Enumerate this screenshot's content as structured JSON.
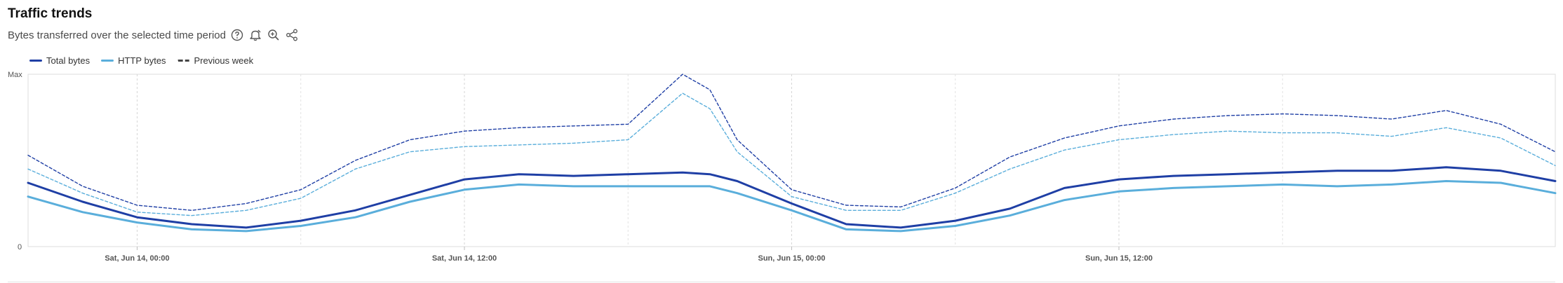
{
  "header": {
    "title": "Traffic trends",
    "subtitle": "Bytes transferred over the selected time period"
  },
  "icons": [
    "help-icon",
    "alert-icon",
    "zoom-icon",
    "share-icon"
  ],
  "legend": [
    {
      "label": "Total bytes",
      "color": "#1f3fa5",
      "style": "solid"
    },
    {
      "label": "HTTP bytes",
      "color": "#5aaedb",
      "style": "solid"
    },
    {
      "label": "Previous week",
      "color": "#444444",
      "style": "dashed"
    }
  ],
  "chart_data": {
    "type": "line",
    "ylim": [
      0,
      1
    ],
    "y_tick_labels": {
      "max": "Max",
      "min": "0"
    },
    "xlim": [
      "2025-06-13T20:00",
      "2025-06-16T04:00"
    ],
    "x_ticks": [
      {
        "label": "Sat, Jun 14, 00:00",
        "t": "2025-06-14T00:00"
      },
      {
        "label": "Sat, Jun 14, 12:00",
        "t": "2025-06-14T12:00"
      },
      {
        "label": "Sun, Jun 15, 00:00",
        "t": "2025-06-15T00:00"
      },
      {
        "label": "Sun, Jun 15, 12:00",
        "t": "2025-06-15T12:00"
      }
    ],
    "minor_grid": [
      "2025-06-14T06:00",
      "2025-06-14T18:00",
      "2025-06-15T06:00",
      "2025-06-15T18:00"
    ],
    "x": [
      "2025-06-13T20:00",
      "2025-06-13T22:00",
      "2025-06-14T00:00",
      "2025-06-14T02:00",
      "2025-06-14T04:00",
      "2025-06-14T06:00",
      "2025-06-14T08:00",
      "2025-06-14T10:00",
      "2025-06-14T12:00",
      "2025-06-14T14:00",
      "2025-06-14T16:00",
      "2025-06-14T18:00",
      "2025-06-14T20:00",
      "2025-06-14T21:00",
      "2025-06-14T22:00",
      "2025-06-15T00:00",
      "2025-06-15T02:00",
      "2025-06-15T04:00",
      "2025-06-15T06:00",
      "2025-06-15T08:00",
      "2025-06-15T10:00",
      "2025-06-15T12:00",
      "2025-06-15T14:00",
      "2025-06-15T16:00",
      "2025-06-15T18:00",
      "2025-06-15T20:00",
      "2025-06-15T22:00",
      "2025-06-16T00:00",
      "2025-06-16T02:00",
      "2025-06-16T04:00"
    ],
    "series": [
      {
        "name": "Total bytes",
        "color": "#1f3fa5",
        "style": "solid",
        "values": [
          0.37,
          0.26,
          0.17,
          0.13,
          0.11,
          0.15,
          0.21,
          0.3,
          0.39,
          0.42,
          0.41,
          0.42,
          0.43,
          0.42,
          0.38,
          0.25,
          0.13,
          0.11,
          0.15,
          0.22,
          0.34,
          0.39,
          0.41,
          0.42,
          0.43,
          0.44,
          0.44,
          0.46,
          0.44,
          0.38
        ]
      },
      {
        "name": "HTTP bytes",
        "color": "#5aaedb",
        "style": "solid",
        "values": [
          0.29,
          0.2,
          0.14,
          0.1,
          0.09,
          0.12,
          0.17,
          0.26,
          0.33,
          0.36,
          0.35,
          0.35,
          0.35,
          0.35,
          0.31,
          0.21,
          0.1,
          0.09,
          0.12,
          0.18,
          0.27,
          0.32,
          0.34,
          0.35,
          0.36,
          0.35,
          0.36,
          0.38,
          0.37,
          0.31
        ]
      },
      {
        "name": "Previous week",
        "color": "#1f3fa5",
        "style": "dashed",
        "values": [
          0.53,
          0.35,
          0.24,
          0.21,
          0.25,
          0.33,
          0.5,
          0.62,
          0.67,
          0.69,
          0.7,
          0.71,
          1.0,
          0.91,
          0.62,
          0.33,
          0.24,
          0.23,
          0.34,
          0.52,
          0.63,
          0.7,
          0.74,
          0.76,
          0.77,
          0.76,
          0.74,
          0.79,
          0.71,
          0.55
        ]
      },
      {
        "name": "Previous week",
        "color": "#5aaedb",
        "style": "dashed",
        "values": [
          0.45,
          0.31,
          0.2,
          0.18,
          0.21,
          0.28,
          0.45,
          0.55,
          0.58,
          0.59,
          0.6,
          0.62,
          0.89,
          0.8,
          0.55,
          0.29,
          0.21,
          0.21,
          0.31,
          0.45,
          0.56,
          0.62,
          0.65,
          0.67,
          0.66,
          0.66,
          0.64,
          0.69,
          0.63,
          0.47
        ]
      }
    ]
  }
}
